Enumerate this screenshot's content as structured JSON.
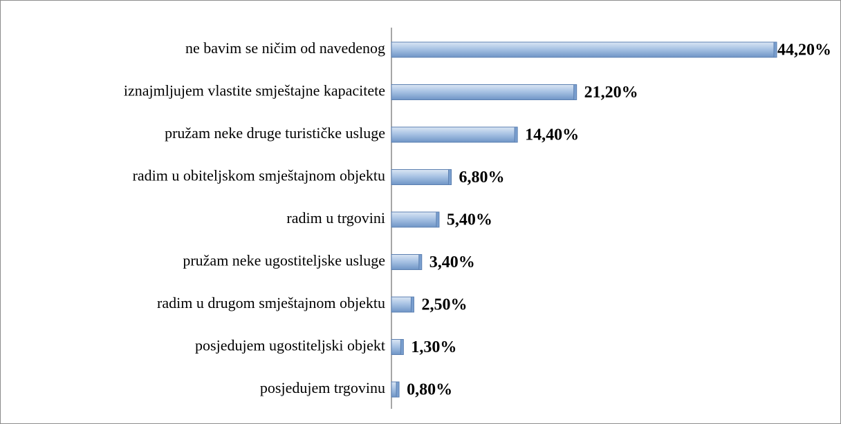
{
  "chart_data": {
    "type": "bar",
    "orientation": "horizontal",
    "categories": [
      "ne bavim se ničim od navedenog",
      "iznajmljujem vlastite smještajne kapacitete",
      "pružam neke druge turističke usluge",
      "radim u obiteljskom smještajnom objektu",
      "radim u trgovini",
      "pružam neke ugostiteljske usluge",
      "radim u drugom smještajnom objektu",
      "posjedujem ugostiteljski objekt",
      "posjedujem trgovinu"
    ],
    "values": [
      44.2,
      21.2,
      14.4,
      6.8,
      5.4,
      3.4,
      2.5,
      1.3,
      0.8
    ],
    "value_labels": [
      "44,20%",
      "21,20%",
      "14,40%",
      "6,80%",
      "5,40%",
      "3,40%",
      "2,50%",
      "1,30%",
      "0,80%"
    ],
    "color": "#9dbbe0"
  }
}
